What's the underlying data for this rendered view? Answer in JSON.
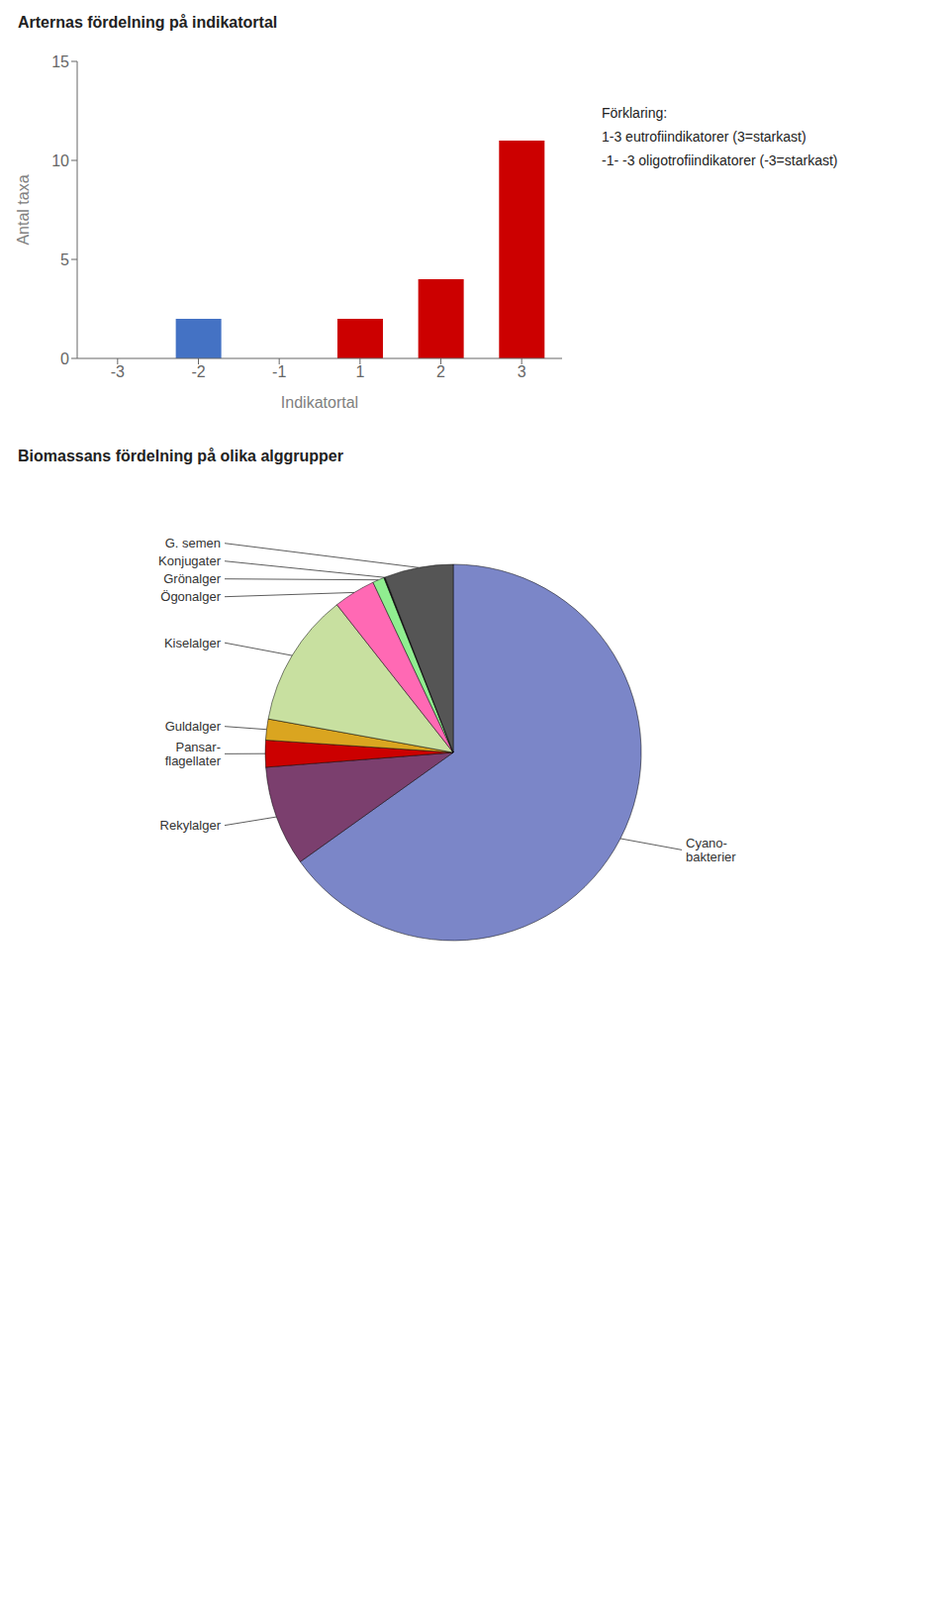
{
  "chart_data": [
    {
      "type": "bar",
      "title": "Arternas fördelning på indikatortal",
      "xlabel": "Indikatortal",
      "ylabel": "Antal taxa",
      "categories": [
        "-3",
        "-2",
        "-1",
        "1",
        "2",
        "3"
      ],
      "values": [
        0,
        2,
        0,
        2,
        4,
        11
      ],
      "colors": [
        "#CC0000",
        "#4472C4",
        "#CC0000",
        "#CC0000",
        "#CC0000",
        "#CC0000"
      ],
      "ylim": [
        0,
        15
      ],
      "yticks": [
        0,
        5,
        10,
        15
      ],
      "grid": false,
      "annotations": [
        "Förklaring:",
        "1-3 eutrofiindikatorer (3=starkast)",
        "-1- -3 oligotrofiindikatorer (-3=starkast)"
      ]
    },
    {
      "type": "pie",
      "title": "Biomassans fördelning på olika alggrupper",
      "categories": [
        "Cyano-\nbakterier",
        "Rekylalger",
        "Pansar-\nflagellater",
        "Guldalger",
        "Kiselalger",
        "Ögonalger",
        "Grönalger",
        "Konjugater",
        "G. semen"
      ],
      "values": [
        65.0,
        8.6,
        2.3,
        1.8,
        11.5,
        3.6,
        1.0,
        0.1,
        5.9
      ],
      "colors": [
        "#7B86C8",
        "#7B3F6E",
        "#CC0000",
        "#DAA520",
        "#C8E0A0",
        "#FF69B4",
        "#90EE90",
        "#1A1A1A",
        "#555555"
      ]
    }
  ]
}
